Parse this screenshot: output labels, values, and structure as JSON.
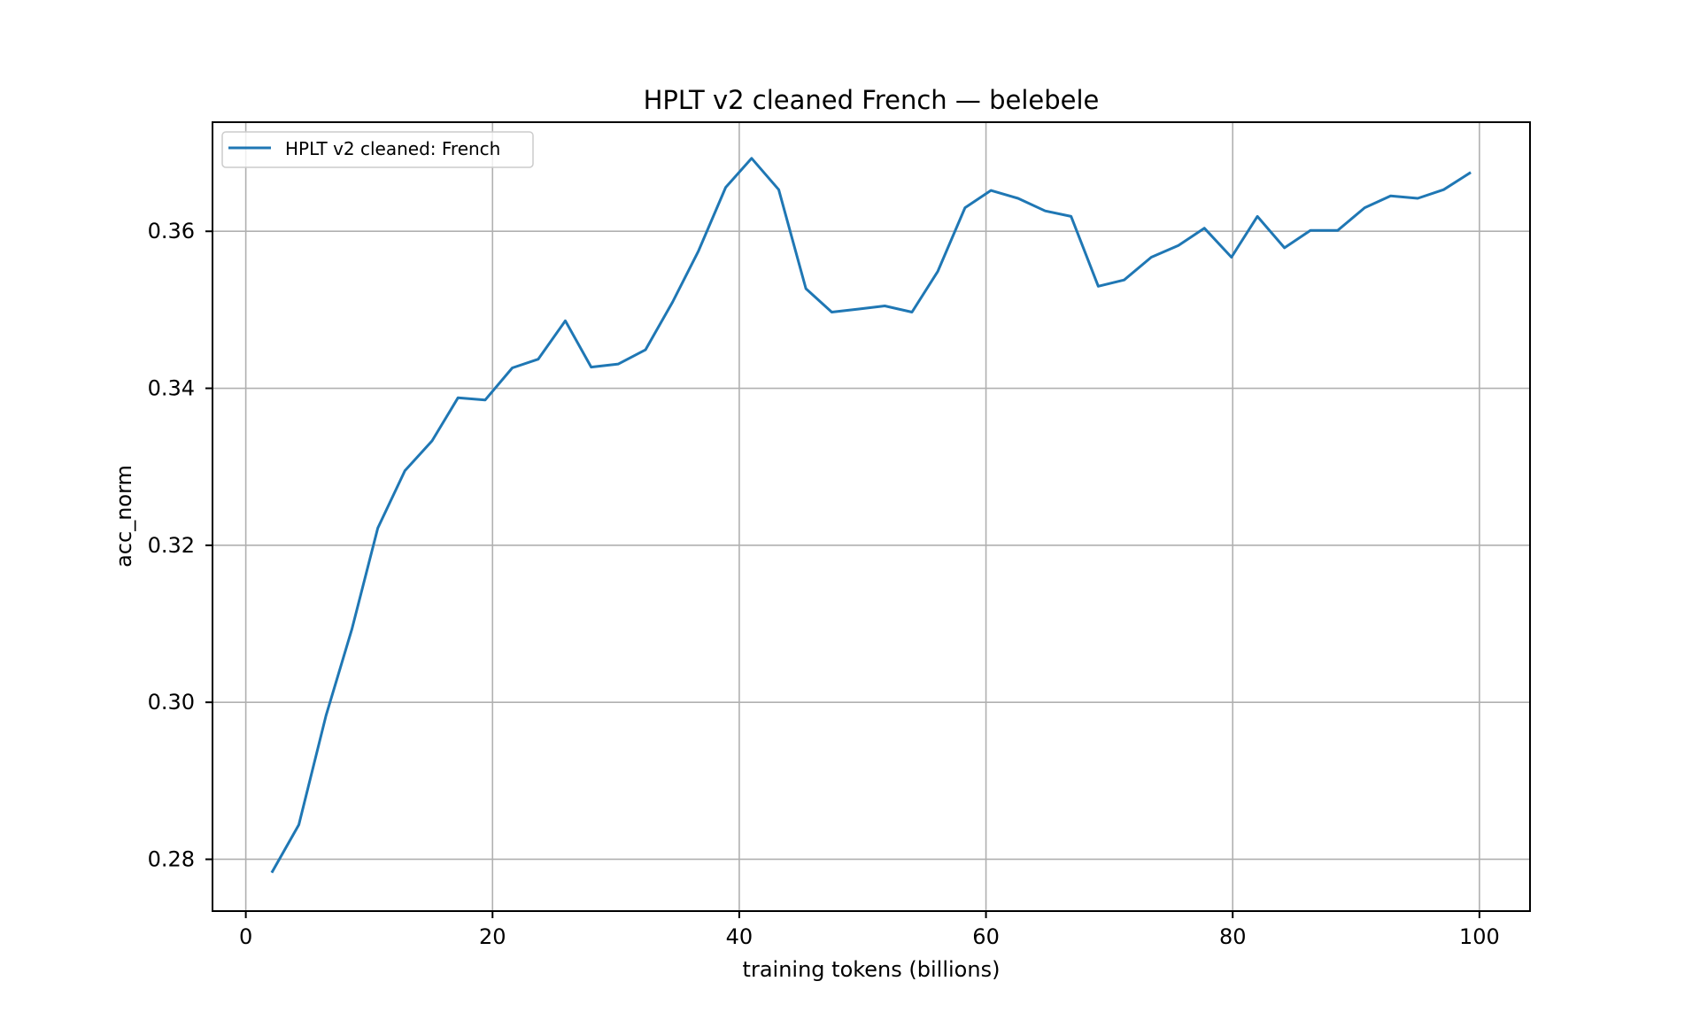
{
  "chart_data": {
    "type": "line",
    "title": "HPLT v2 cleaned French — belebele",
    "xlabel": "training tokens (billions)",
    "ylabel": "acc_norm",
    "xlim": [
      -2.7,
      104.1
    ],
    "ylim": [
      0.2734,
      0.3739
    ],
    "xticks": [
      0,
      20,
      40,
      60,
      80,
      100
    ],
    "xtick_labels": [
      "0",
      "20",
      "40",
      "60",
      "80",
      "100"
    ],
    "yticks": [
      0.28,
      0.3,
      0.32,
      0.34,
      0.36
    ],
    "ytick_labels": [
      "0.28",
      "0.30",
      "0.32",
      "0.34",
      "0.36"
    ],
    "grid": true,
    "legend_position": "upper left",
    "series": [
      {
        "name": "HPLT v2 cleaned: French",
        "color": "#1f77b4",
        "x": [
          2.1,
          4.3,
          6.5,
          8.6,
          10.7,
          12.9,
          15.1,
          17.2,
          19.4,
          21.6,
          23.7,
          25.9,
          28.0,
          30.2,
          32.4,
          34.6,
          36.7,
          38.9,
          41.0,
          43.2,
          45.4,
          47.5,
          49.7,
          51.8,
          54.0,
          56.1,
          58.3,
          60.4,
          62.6,
          64.8,
          66.9,
          69.1,
          71.2,
          73.4,
          75.6,
          77.7,
          79.9,
          82.0,
          84.2,
          86.3,
          88.5,
          90.7,
          92.8,
          95.0,
          97.1,
          99.3
        ],
        "values": [
          0.2783,
          0.2844,
          0.2983,
          0.3093,
          0.3222,
          0.3295,
          0.3333,
          0.3388,
          0.3385,
          0.3426,
          0.3437,
          0.3486,
          0.3427,
          0.3431,
          0.3449,
          0.351,
          0.3575,
          0.3656,
          0.3693,
          0.3653,
          0.3527,
          0.3497,
          0.3501,
          0.3505,
          0.3497,
          0.3549,
          0.363,
          0.3652,
          0.3642,
          0.3626,
          0.3619,
          0.353,
          0.3538,
          0.3567,
          0.3582,
          0.3604,
          0.3567,
          0.3619,
          0.3579,
          0.3601,
          0.3601,
          0.363,
          0.3645,
          0.3642,
          0.3653,
          0.3675
        ]
      }
    ]
  },
  "colors": {
    "line": "#1f77b4",
    "grid": "#b0b0b0",
    "spine": "#000000",
    "background": "#ffffff",
    "legend_border": "#cccccc"
  }
}
